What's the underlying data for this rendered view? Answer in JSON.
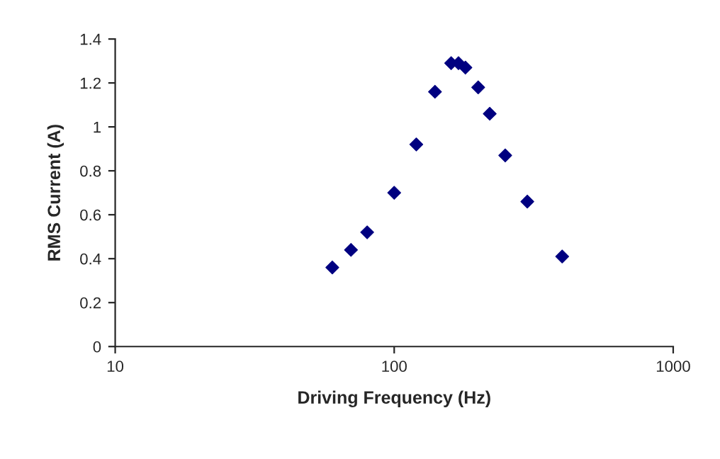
{
  "chart_data": {
    "type": "scatter",
    "xlabel": "Driving Frequency (Hz)",
    "ylabel": "RMS Current (A)",
    "log": "x",
    "xlim": [
      10,
      1000
    ],
    "xticks": [
      10,
      100,
      1000
    ],
    "ylim": [
      0,
      1.4
    ],
    "yticks": [
      0,
      0.2,
      0.4,
      0.6,
      0.8,
      1,
      1.2,
      1.4
    ],
    "grid": false,
    "marker": "diamond",
    "series": [
      {
        "color": "#000080",
        "x": [
          60,
          70,
          80,
          100,
          120,
          140,
          160,
          170,
          180,
          200,
          220,
          250,
          300,
          400
        ],
        "values": [
          0.36,
          0.44,
          0.52,
          0.7,
          0.92,
          1.16,
          1.29,
          1.29,
          1.27,
          1.18,
          1.06,
          0.87,
          0.66,
          0.41
        ]
      }
    ]
  }
}
